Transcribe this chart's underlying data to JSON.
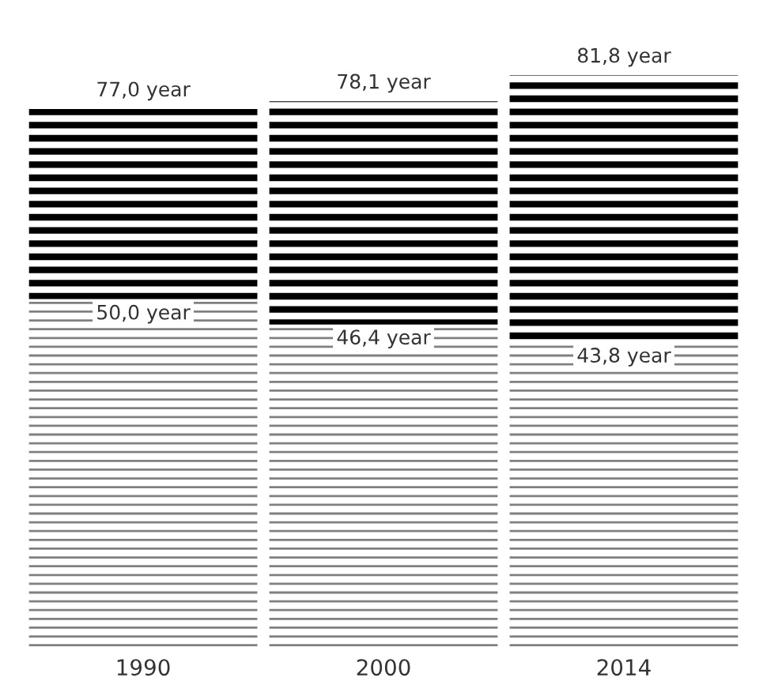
{
  "chart_data": {
    "type": "bar",
    "stacked": true,
    "categories": [
      "1990",
      "2000",
      "2014"
    ],
    "series": [
      {
        "color": "#808080",
        "values": [
          50.0,
          46.4,
          43.8
        ],
        "value_labels": [
          "50,0 year",
          "46,4 year",
          "43,8 year"
        ]
      },
      {
        "color": "#000000",
        "values": [
          27.0,
          31.7,
          38.0
        ]
      }
    ],
    "totals": [
      "77,0 year",
      "78,1 year",
      "81,8 year"
    ]
  }
}
